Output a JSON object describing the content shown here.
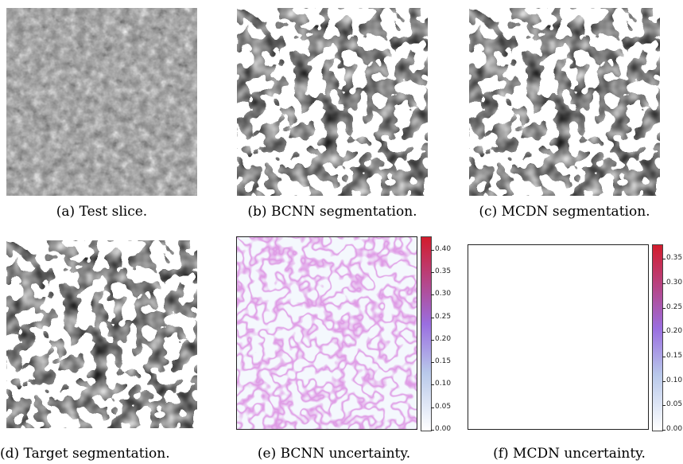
{
  "panels": [
    {
      "id": "a",
      "caption": "(a) Test slice."
    },
    {
      "id": "b",
      "caption": "(b) BCNN segmentation."
    },
    {
      "id": "c",
      "caption": "(c) MCDN segmentation."
    },
    {
      "id": "d",
      "caption": "(d) Target segmentation."
    },
    {
      "id": "e",
      "caption": "(e) BCNN uncertainty."
    },
    {
      "id": "f",
      "caption": "(f) MCDN uncertainty."
    }
  ],
  "colorbars": {
    "e": {
      "ticks": [
        "0.40",
        "0.35",
        "0.30",
        "0.25",
        "0.20",
        "0.15",
        "0.10",
        "0.05",
        "0.00"
      ],
      "max": 0.43
    },
    "f": {
      "ticks": [
        "0.35",
        "0.30",
        "0.25",
        "0.20",
        "0.15",
        "0.10",
        "0.05",
        "0.00"
      ],
      "max": 0.38
    }
  },
  "colors": {
    "low": "#ffffff",
    "mid_low": "#b8c8ea",
    "mid": "#9a6ee0",
    "high": "#d21c2c"
  }
}
